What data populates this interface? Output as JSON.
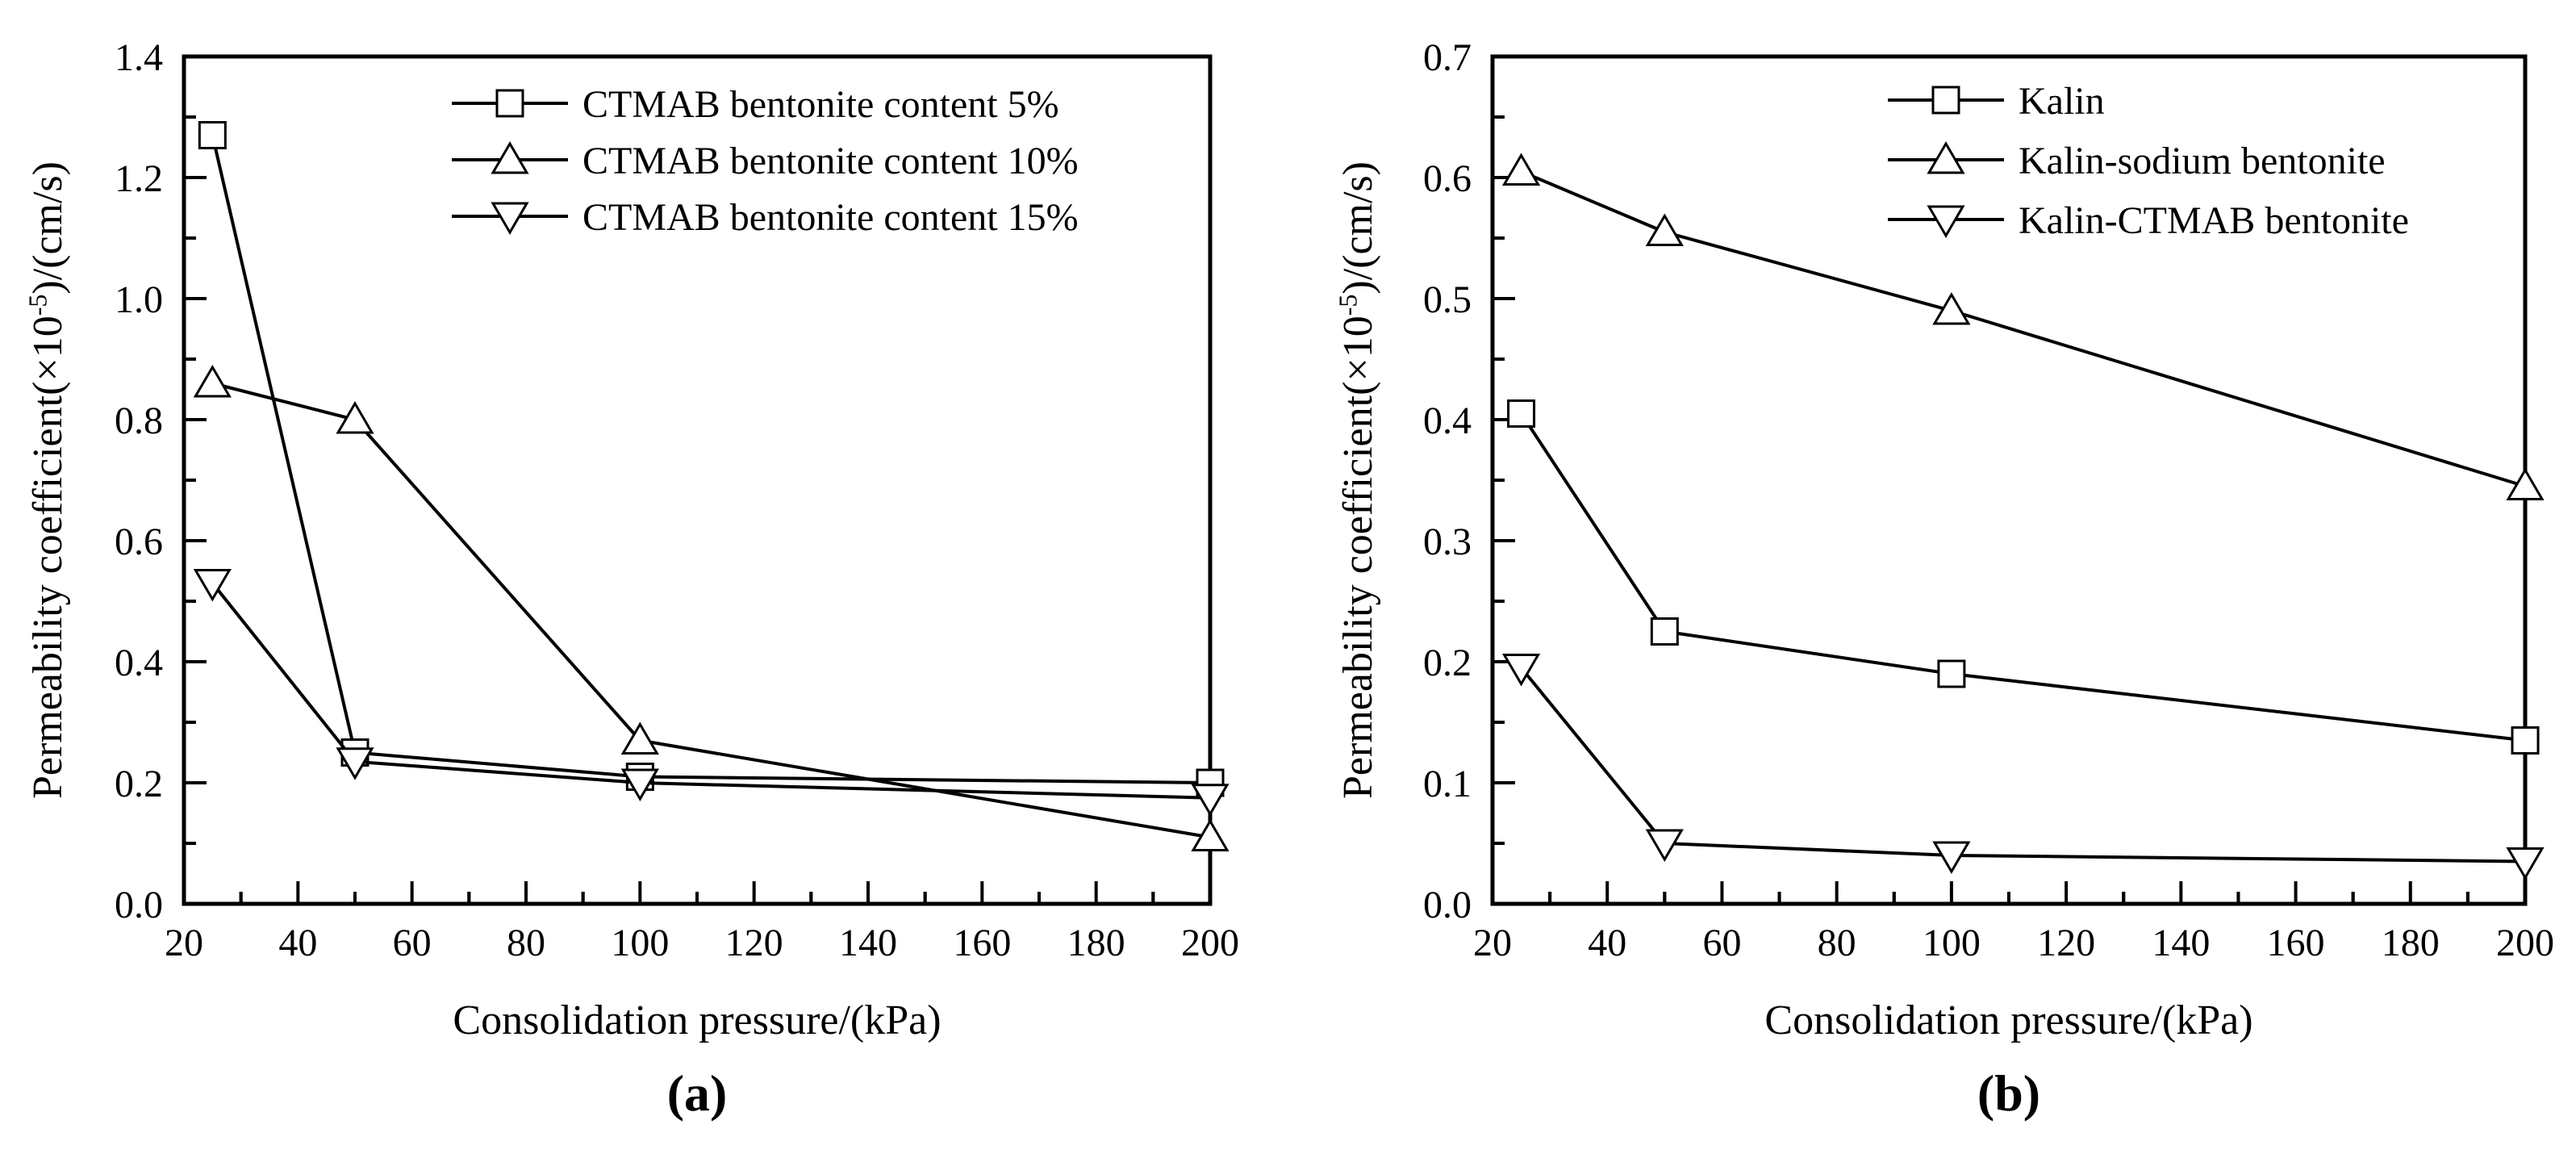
{
  "panels": [
    {
      "caption": "(a)",
      "xlabel": "Consolidation pressure/(kPa)",
      "ylabel_main": "Permeability coefficient(×10",
      "ylabel_sup": "-5",
      "ylabel_rest": ")/(cm/s)"
    },
    {
      "caption": "(b)",
      "xlabel": "Consolidation pressure/(kPa)",
      "ylabel_main": "Permeability coefficient(×10",
      "ylabel_sup": "-5",
      "ylabel_rest": ")/(cm/s)"
    }
  ],
  "chart_data": [
    {
      "type": "line",
      "panel": "a",
      "title": "",
      "xlabel": "Consolidation pressure/(kPa)",
      "ylabel": "Permeability coefficient(×10-5)/(cm/s)",
      "x": [
        25,
        50,
        100,
        200
      ],
      "series": [
        {
          "name": "CTMAB bentonite content 5%",
          "marker": "square",
          "values": [
            1.27,
            0.25,
            0.21,
            0.2
          ]
        },
        {
          "name": "CTMAB bentonite content 10%",
          "marker": "triangle-up",
          "values": [
            0.86,
            0.8,
            0.27,
            0.11
          ]
        },
        {
          "name": "CTMAB bentonite content 15%",
          "marker": "triangle-down",
          "values": [
            0.53,
            0.235,
            0.2,
            0.175
          ]
        }
      ],
      "xlim": [
        20,
        200
      ],
      "ylim": [
        0,
        1.4
      ],
      "xticks": [
        20,
        40,
        60,
        80,
        100,
        120,
        140,
        160,
        180,
        200
      ],
      "xtick_labels": [
        "20",
        "40",
        "60",
        "80",
        "100",
        "120",
        "140",
        "160",
        "180",
        "200"
      ],
      "yticks": [
        0,
        0.2,
        0.4,
        0.6,
        0.8,
        1.0,
        1.2,
        1.4
      ],
      "ytick_labels": [
        "0.0",
        "0.2",
        "0.4",
        "0.6",
        "0.8",
        "1.0",
        "1.2",
        "1.4"
      ],
      "x_minor_step": 10,
      "y_minor_step": 0.1,
      "grid": false,
      "legend_position": "top-right-inside",
      "line_color": "#000000",
      "marker_fill": "#ffffff"
    },
    {
      "type": "line",
      "panel": "b",
      "title": "",
      "xlabel": "Consolidation pressure/(kPa)",
      "ylabel": "Permeability coefficient(×10-5)/(cm/s)",
      "x": [
        25,
        50,
        100,
        200
      ],
      "series": [
        {
          "name": "Kalin",
          "marker": "square",
          "values": [
            0.405,
            0.225,
            0.19,
            0.135
          ]
        },
        {
          "name": "Kalin-sodium bentonite",
          "marker": "triangle-up",
          "values": [
            0.605,
            0.555,
            0.49,
            0.345
          ]
        },
        {
          "name": "Kalin-CTMAB bentonite",
          "marker": "triangle-down",
          "values": [
            0.195,
            0.05,
            0.04,
            0.035
          ]
        }
      ],
      "xlim": [
        20,
        200
      ],
      "ylim": [
        0,
        0.7
      ],
      "xticks": [
        20,
        40,
        60,
        80,
        100,
        120,
        140,
        160,
        180,
        200
      ],
      "xtick_labels": [
        "20",
        "40",
        "60",
        "80",
        "100",
        "120",
        "140",
        "160",
        "180",
        "200"
      ],
      "yticks": [
        0,
        0.1,
        0.2,
        0.3,
        0.4,
        0.5,
        0.6,
        0.7
      ],
      "ytick_labels": [
        "0.0",
        "0.1",
        "0.2",
        "0.3",
        "0.4",
        "0.5",
        "0.6",
        "0.7"
      ],
      "x_minor_step": 10,
      "y_minor_step": 0.05,
      "grid": false,
      "legend_position": "top-right-inside",
      "line_color": "#000000",
      "marker_fill": "#ffffff"
    }
  ]
}
